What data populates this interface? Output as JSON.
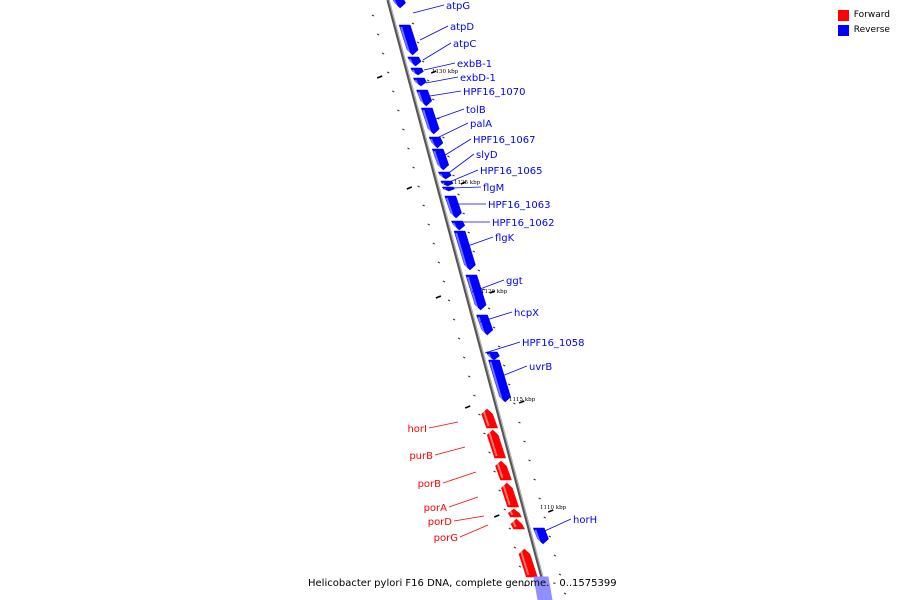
{
  "legend": {
    "items": [
      {
        "label": "Forward",
        "color": "#ff0000"
      },
      {
        "label": "Reverse",
        "color": "#0000ff"
      }
    ]
  },
  "caption": {
    "text": "Helicobacter pylori F16 DNA, complete genome. - 0..1575399"
  },
  "ruler": {
    "labels": [
      "1130 kbp",
      "1125 kbp",
      "1120 kbp",
      "1115 kbp",
      "1110 kbp"
    ]
  },
  "colors": {
    "forward": "#ff0000",
    "reverse": "#0000ff",
    "backbone": "#7f7f7f"
  },
  "genes": {
    "reverse": [
      "atpG",
      "atpD",
      "atpC",
      "exbB-1",
      "exbD-1",
      "HPF16_1070",
      "tolB",
      "palA",
      "HPF16_1067",
      "slyD",
      "HPF16_1065",
      "flgM",
      "HPF16_1063",
      "HPF16_1062",
      "flgK",
      "ggt",
      "hcpX",
      "HPF16_1058",
      "uvrB",
      "horH"
    ],
    "forward": [
      "horI",
      "purB",
      "porB",
      "porA",
      "porD",
      "porG"
    ]
  }
}
